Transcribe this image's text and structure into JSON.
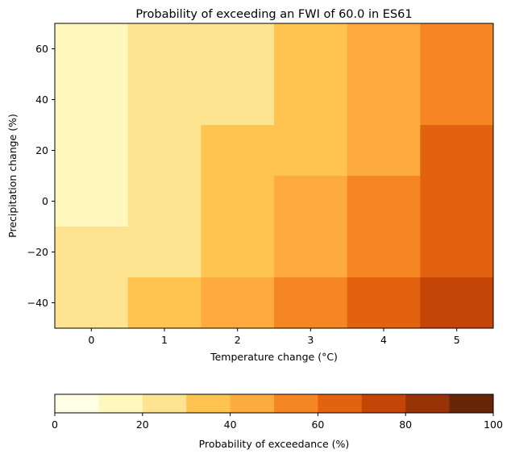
{
  "chart_data": {
    "type": "heatmap",
    "title": "Probability of exceeding an FWI of 60.0 in ES61",
    "xlabel": "Temperature change (°C)",
    "ylabel": "Precipitation change (%)",
    "x": [
      0,
      1,
      2,
      3,
      4,
      5
    ],
    "y": [
      -40,
      -20,
      0,
      20,
      40,
      60
    ],
    "xlim": [
      -0.5,
      5.5
    ],
    "ylim": [
      -50,
      70
    ],
    "x_ticks": [
      "0",
      "1",
      "2",
      "3",
      "4",
      "5"
    ],
    "y_ticks": [
      -40,
      -20,
      0,
      20,
      40,
      60
    ],
    "y_tick_labels": [
      "−40",
      "−20",
      "0",
      "20",
      "40",
      "60"
    ],
    "values_by_row": [
      {
        "y": 60,
        "values": [
          15,
          25,
          25,
          35,
          45,
          55
        ]
      },
      {
        "y": 40,
        "values": [
          15,
          25,
          25,
          35,
          45,
          55
        ]
      },
      {
        "y": 20,
        "values": [
          15,
          25,
          35,
          35,
          45,
          65
        ]
      },
      {
        "y": 0,
        "values": [
          15,
          25,
          35,
          45,
          55,
          65
        ]
      },
      {
        "y": -20,
        "values": [
          25,
          25,
          35,
          45,
          55,
          65
        ]
      },
      {
        "y": -40,
        "values": [
          25,
          35,
          45,
          55,
          65,
          75
        ]
      }
    ],
    "colorbar": {
      "label": "Probability of exceedance (%)",
      "range": [
        0,
        100
      ],
      "levels": [
        0,
        10,
        20,
        30,
        40,
        50,
        60,
        70,
        80,
        90,
        100
      ],
      "tick_labels": [
        "0",
        "20",
        "40",
        "60",
        "80",
        "100"
      ],
      "colors": [
        "#ffffe5",
        "#fff7bc",
        "#fee391",
        "#fec44f",
        "#feab3d",
        "#f68622",
        "#e2620f",
        "#c44505",
        "#973304",
        "#662506"
      ]
    }
  }
}
